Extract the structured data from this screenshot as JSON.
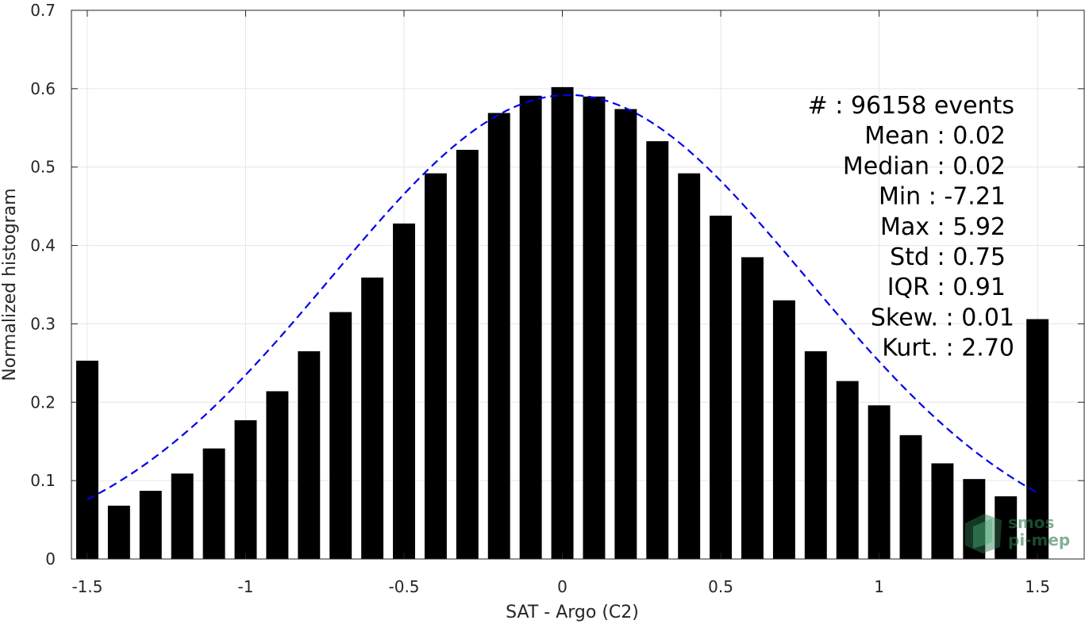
{
  "chart_data": {
    "type": "bar",
    "xlabel": "SAT - Argo (C2)",
    "ylabel": "Normalized histogram",
    "xlim": [
      -1.55,
      1.65
    ],
    "ylim": [
      0,
      0.7
    ],
    "x_ticks": [
      -1.5,
      -1,
      -0.5,
      0,
      0.5,
      1,
      1.5
    ],
    "x_tick_labels": [
      "-1.5",
      "-1",
      "-0.5",
      "0",
      "0.5",
      "1",
      "1.5"
    ],
    "y_ticks": [
      0,
      0.1,
      0.2,
      0.3,
      0.4,
      0.5,
      0.6,
      0.7
    ],
    "y_tick_labels": [
      "0",
      "0.1",
      "0.2",
      "0.3",
      "0.4",
      "0.5",
      "0.6",
      "0.7"
    ],
    "grid": true,
    "bar_color": "#000000",
    "bar_width": 0.07,
    "x": [
      -1.5,
      -1.4,
      -1.3,
      -1.2,
      -1.1,
      -1.0,
      -0.9,
      -0.8,
      -0.7,
      -0.6,
      -0.5,
      -0.4,
      -0.3,
      -0.2,
      -0.1,
      0.0,
      0.1,
      0.2,
      0.3,
      0.4,
      0.5,
      0.6,
      0.7,
      0.8,
      0.9,
      1.0,
      1.1,
      1.2,
      1.3,
      1.4,
      1.5
    ],
    "values": [
      0.253,
      0.068,
      0.087,
      0.109,
      0.141,
      0.177,
      0.214,
      0.265,
      0.315,
      0.359,
      0.428,
      0.492,
      0.522,
      0.569,
      0.591,
      0.602,
      0.59,
      0.574,
      0.533,
      0.492,
      0.438,
      0.385,
      0.33,
      0.265,
      0.227,
      0.196,
      0.158,
      0.122,
      0.102,
      0.08,
      0.306
    ],
    "fit_curve": {
      "style": "dashed",
      "color": "#0000ee",
      "mean": 0.02,
      "peak": 0.592,
      "x_range": [
        -1.5,
        1.5
      ]
    },
    "stats_lines": [
      "#  : 96158 events",
      "Mean : 0.02",
      "Median : 0.02",
      "Min : -7.21",
      "Max : 5.92",
      "Std : 0.75",
      "IQR : 0.91",
      "Skew. : 0.01",
      "Kurt. : 2.70"
    ]
  },
  "logo": {
    "line1": "smos",
    "line2": "pi-mep"
  }
}
